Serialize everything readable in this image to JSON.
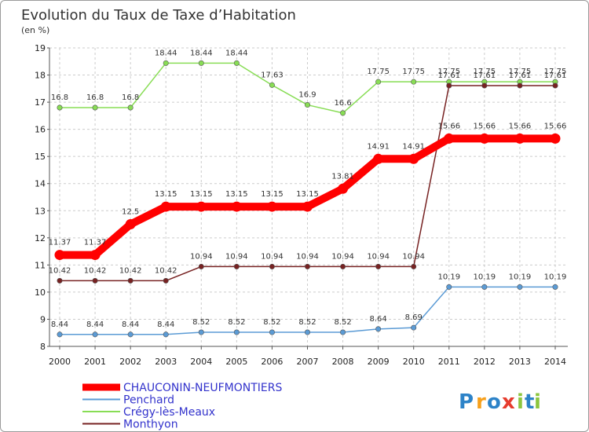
{
  "chart_data": {
    "type": "line",
    "title": "Evolution du Taux de Taxe d’Habitation",
    "subtitle": "(en %)",
    "xlabel": "",
    "ylabel": "",
    "categories": [
      "2000",
      "2001",
      "2002",
      "2003",
      "2004",
      "2005",
      "2006",
      "2007",
      "2008",
      "2009",
      "2010",
      "2011",
      "2012",
      "2013",
      "2014"
    ],
    "ylim": [
      8,
      19
    ],
    "yticks": [
      8,
      9,
      10,
      11,
      12,
      13,
      14,
      15,
      16,
      17,
      18,
      19
    ],
    "grid": "dashed",
    "legend_position": "bottom-left",
    "series": [
      {
        "name": "CHAUCONIN-NEUFMONTIERS",
        "color": "#ff0000",
        "labels": [
          "11.37",
          "11.37",
          "12.5",
          "13.15",
          "13.15",
          "13.15",
          "13.15",
          "13.15",
          "13.81",
          "14.91",
          "14.91",
          "15.66",
          "15.66",
          "15.66",
          "15.66"
        ],
        "values": [
          11.37,
          11.37,
          12.5,
          13.15,
          13.15,
          13.15,
          13.15,
          13.15,
          13.81,
          14.91,
          14.91,
          15.66,
          15.66,
          15.66,
          15.66
        ]
      },
      {
        "name": "Penchard",
        "color": "#5b9bd5",
        "labels": [
          "8.44",
          "8.44",
          "8.44",
          "8.44",
          "8.52",
          "8.52",
          "8.52",
          "8.52",
          "8.52",
          "8.64",
          "8.69",
          "10.19",
          "10.19",
          "10.19",
          "10.19"
        ],
        "values": [
          8.44,
          8.44,
          8.44,
          8.44,
          8.52,
          8.52,
          8.52,
          8.52,
          8.52,
          8.64,
          8.69,
          10.19,
          10.19,
          10.19,
          10.19
        ]
      },
      {
        "name": "Crégy-lès-Meaux",
        "color": "#88dd55",
        "labels": [
          "16.8",
          "16.8",
          "16.8",
          "18.44",
          "18.44",
          "18.44",
          "17.63",
          "16.9",
          "16.6",
          "17.75",
          "17.75",
          "17.75",
          "17.75",
          "17.75",
          "17.75"
        ],
        "values": [
          16.8,
          16.8,
          16.8,
          18.44,
          18.44,
          18.44,
          17.63,
          16.9,
          16.6,
          17.75,
          17.75,
          17.75,
          17.75,
          17.75,
          17.75
        ]
      },
      {
        "name": "Monthyon",
        "color": "#772222",
        "labels": [
          "10.42",
          "10.42",
          "10.42",
          "10.42",
          "10.94",
          "10.94",
          "10.94",
          "10.94",
          "10.94",
          "10.94",
          "10.94",
          "17.61",
          "17.61",
          "17.61",
          "17.61"
        ],
        "values": [
          10.42,
          10.42,
          10.42,
          10.42,
          10.94,
          10.94,
          10.94,
          10.94,
          10.94,
          10.94,
          10.94,
          17.61,
          17.61,
          17.61,
          17.61
        ]
      }
    ]
  },
  "logo": {
    "letters": [
      "P",
      "r",
      "o",
      "x",
      "i",
      "t",
      "i"
    ],
    "colors": [
      "#2d83c8",
      "#f7a01b",
      "#2d83c8",
      "#e63c2e",
      "#8cc63f",
      "#2d83c8",
      "#8cc63f"
    ]
  }
}
